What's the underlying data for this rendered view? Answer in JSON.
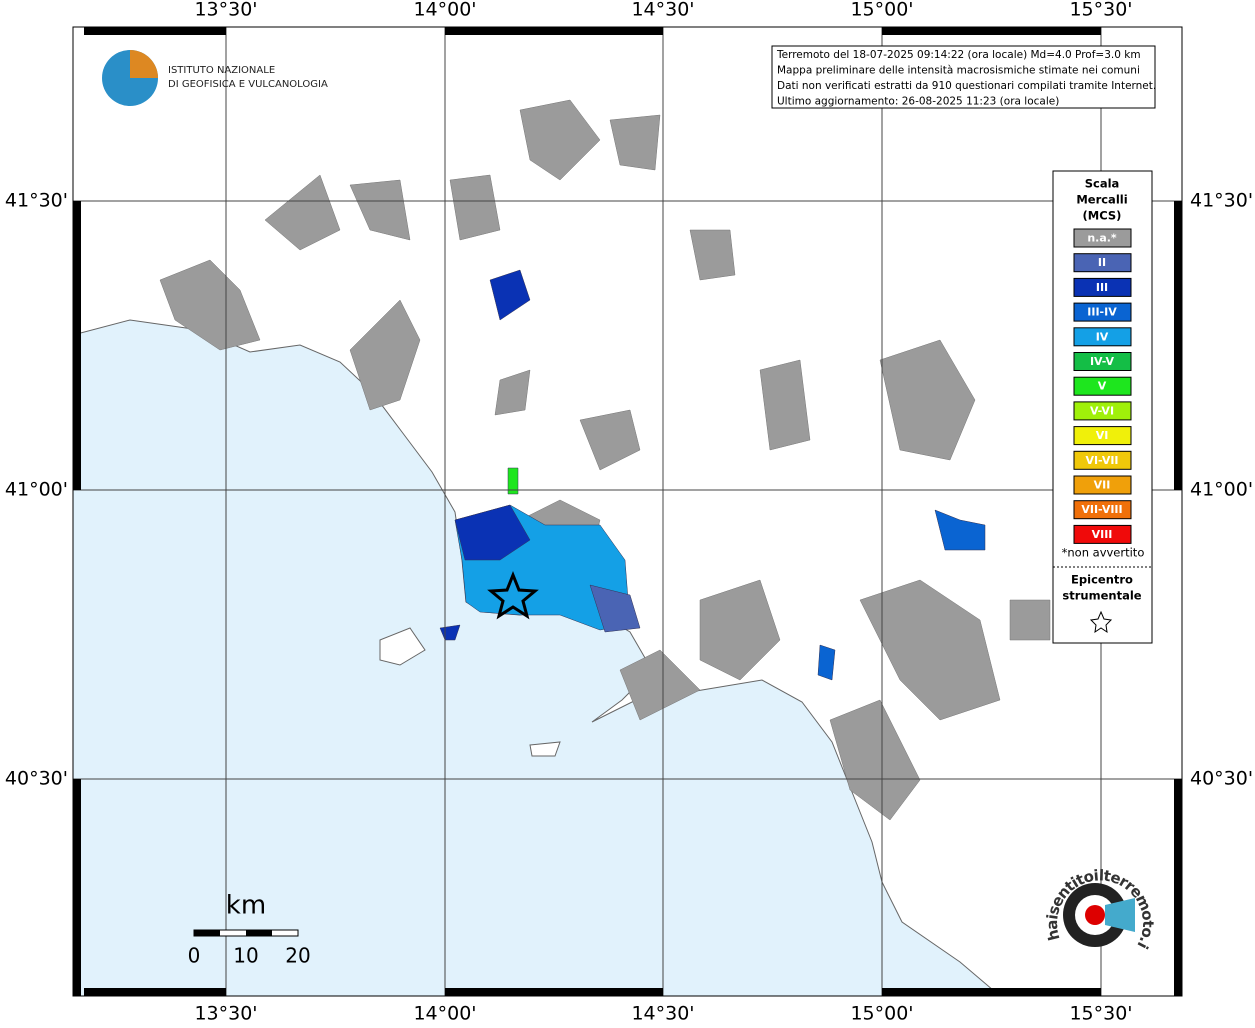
{
  "frame": {
    "lon_labels": [
      "13°30'",
      "14°00'",
      "14°30'",
      "15°00'",
      "15°30'"
    ],
    "lat_labels": [
      "41°30'",
      "41°00'",
      "40°30'"
    ]
  },
  "logo": {
    "line1": "ISTITUTO NAZIONALE",
    "line2": "DI GEOFISICA E VULCANOLOGIA"
  },
  "info": [
    "Terremoto del 18-07-2025 09:14:22 (ora locale) Md=4.0 Prof=3.0 km",
    "Mappa preliminare delle intensità macrosismiche stimate nei comuni",
    "Dati non verificati estratti da 910 questionari compilati tramite Internet.",
    "Ultimo aggiornamento: 26-08-2025 11:23 (ora locale)"
  ],
  "legend": {
    "title": [
      "Scala",
      "Mercalli",
      "(MCS)"
    ],
    "items": [
      {
        "label": "n.a.*",
        "color": "#9b9b9b"
      },
      {
        "label": "II",
        "color": "#4a64b4"
      },
      {
        "label": "III",
        "color": "#0a32b4"
      },
      {
        "label": "III-IV",
        "color": "#0a64d2"
      },
      {
        "label": "IV",
        "color": "#14a0e6"
      },
      {
        "label": "IV-V",
        "color": "#14be46"
      },
      {
        "label": "V",
        "color": "#1ee61e"
      },
      {
        "label": "V-VI",
        "color": "#a0f00a"
      },
      {
        "label": "VI",
        "color": "#f0f00a"
      },
      {
        "label": "VI-VII",
        "color": "#f0c80a"
      },
      {
        "label": "VII",
        "color": "#f0a00a"
      },
      {
        "label": "VII-VIII",
        "color": "#f0700a"
      },
      {
        "label": "VIII",
        "color": "#f00a0a"
      }
    ],
    "note": "*non avvertito",
    "epicenter": [
      "Epicentro",
      "strumentale"
    ]
  },
  "scale": {
    "unit": "km",
    "ticks": [
      "0",
      "10",
      "20"
    ]
  },
  "badge": "haisentitoilterremoto.it"
}
